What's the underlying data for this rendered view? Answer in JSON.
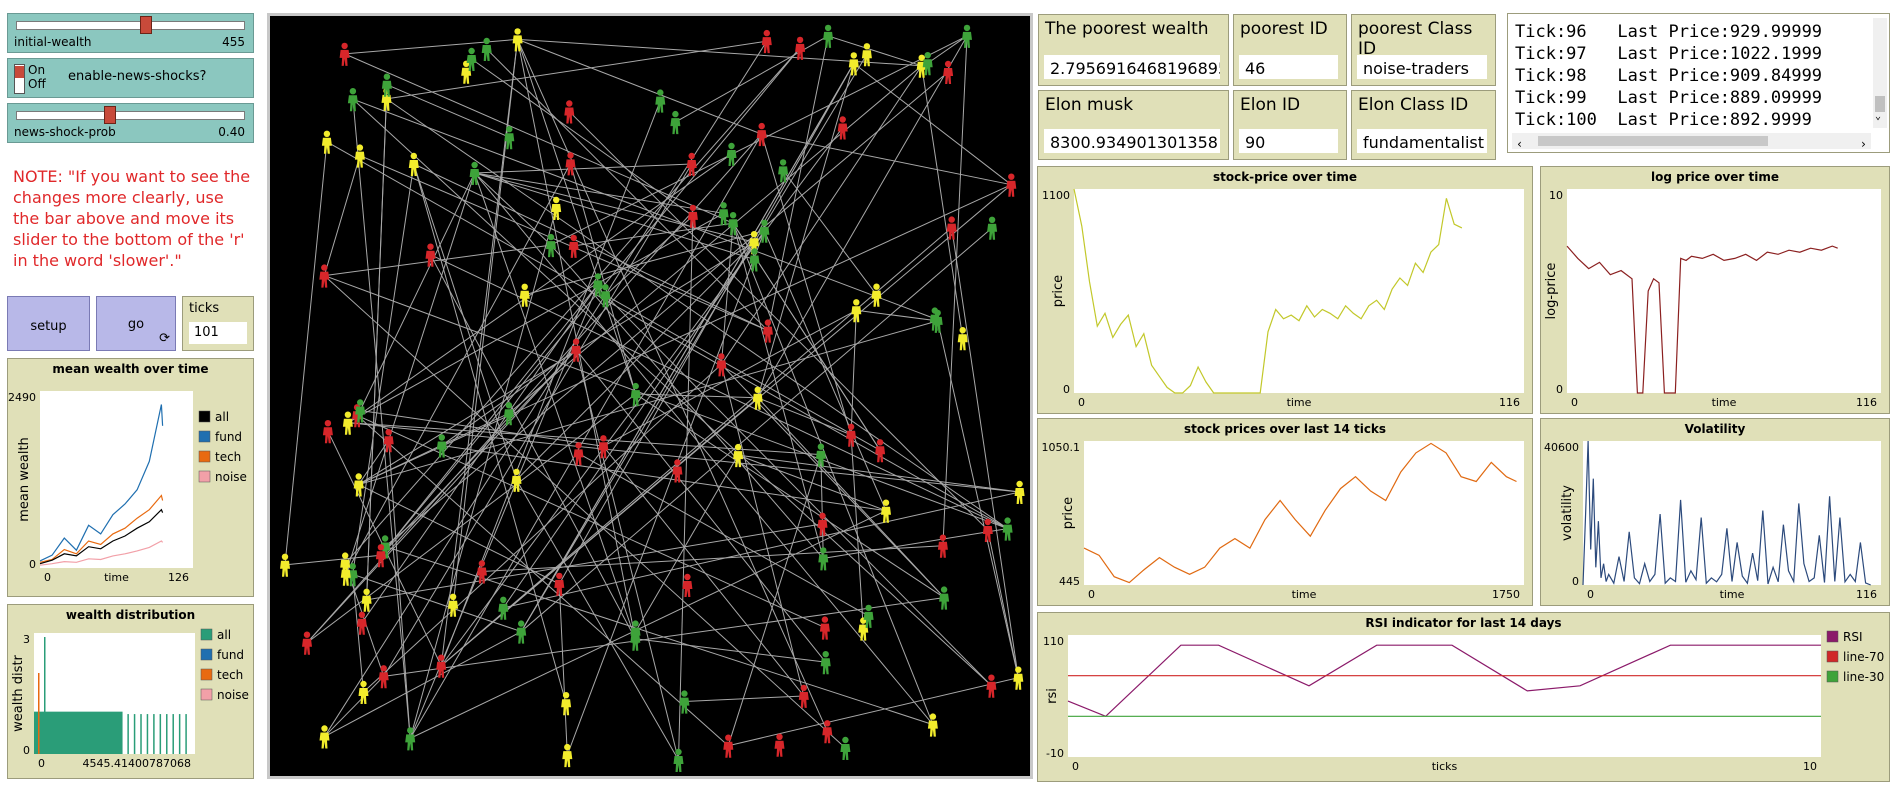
{
  "sliders": {
    "initial_wealth": {
      "label": "initial-wealth",
      "value": "455",
      "fraction": 0.56
    },
    "news_shock_prob": {
      "label": "news-shock-prob",
      "value": "0.40",
      "fraction": 0.4
    }
  },
  "switch": {
    "on": "On",
    "off": "Off",
    "label": "enable-news-shocks?"
  },
  "note": "NOTE: \"If you want to see the changes more clearly, use the bar above and move its slider to the bottom of the 'r' in the word 'slower'.\"",
  "buttons": {
    "setup": "setup",
    "go": "go",
    "forever_icon": "forever-arrows-icon"
  },
  "ticks_monitor": {
    "label": "ticks",
    "value": "101"
  },
  "monitors": {
    "poorest_wealth": {
      "label": "The poorest wealth",
      "value": "2.7956916468196895"
    },
    "poorest_id": {
      "label": "poorest ID",
      "value": "46"
    },
    "poorest_class": {
      "label": "poorest Class ID",
      "value": "noise-traders"
    },
    "elon": {
      "label": "Elon musk",
      "value": "8300.934901301358"
    },
    "elon_id": {
      "label": "Elon ID",
      "value": "90"
    },
    "elon_class": {
      "label": "Elon Class ID",
      "value": "fundamentalist"
    }
  },
  "output_lines": [
    "Tick:96   Last Price:929.99999",
    "Tick:97   Last Price:1022.1999",
    "Tick:98   Last Price:909.84999",
    "Tick:99   Last Price:889.09999",
    "Tick:100  Last Price:892.9999"
  ],
  "colors": {
    "red": "#d7262a",
    "yellow": "#f2ec2c",
    "green": "#3ea33a",
    "link": "#a8a8a8",
    "world": "#000000"
  },
  "chart_data": [
    {
      "type": "line",
      "title": "mean wealth over time",
      "xlabel": "time",
      "ylabel": "mean wealth",
      "xmin_label": "0",
      "xmax_label": "126",
      "ymin_label": "0",
      "ymax_label": "2490",
      "xlim": [
        0,
        126
      ],
      "ylim": [
        0,
        2490
      ],
      "legend": [
        "all",
        "fund",
        "tech",
        "noise"
      ],
      "series": [
        {
          "name": "fund",
          "color": "#1f6fb0",
          "x": [
            0,
            10,
            20,
            30,
            40,
            50,
            60,
            70,
            80,
            90,
            100,
            101
          ],
          "y": [
            100,
            180,
            420,
            250,
            600,
            480,
            750,
            900,
            1100,
            1500,
            2300,
            2000
          ]
        },
        {
          "name": "tech",
          "color": "#e86a10",
          "x": [
            0,
            10,
            20,
            30,
            40,
            50,
            60,
            70,
            80,
            90,
            100,
            101
          ],
          "y": [
            80,
            120,
            260,
            200,
            380,
            330,
            480,
            560,
            700,
            820,
            1020,
            950
          ]
        },
        {
          "name": "all",
          "color": "#000000",
          "x": [
            0,
            10,
            20,
            30,
            40,
            50,
            60,
            70,
            80,
            90,
            100,
            101
          ],
          "y": [
            60,
            110,
            200,
            170,
            300,
            270,
            380,
            450,
            560,
            650,
            820,
            780
          ]
        },
        {
          "name": "noise",
          "color": "#f2a0a8",
          "x": [
            0,
            10,
            20,
            30,
            40,
            50,
            60,
            70,
            80,
            90,
            100,
            101
          ],
          "y": [
            40,
            60,
            90,
            80,
            130,
            120,
            170,
            200,
            240,
            290,
            380,
            360
          ]
        }
      ]
    },
    {
      "type": "bar",
      "title": "wealth distribution",
      "xlabel": "",
      "ylabel": "wealth distr",
      "xmin_label": "0",
      "xmax_label": "4545.41400787068",
      "ymin_label": "0",
      "ymax_label": "3",
      "ylim": [
        0,
        3
      ],
      "legend": [
        "all",
        "fund",
        "tech",
        "noise"
      ],
      "legend_colors": [
        "#2a9d78",
        "#1f6fb0",
        "#e86a10",
        "#f2a0a8"
      ]
    },
    {
      "type": "line",
      "title": "stock-price over time",
      "xlabel": "time",
      "ylabel": "price",
      "xmin_label": "0",
      "xmax_label": "116",
      "ymin_label": "0",
      "ymax_label": "1100",
      "xlim": [
        0,
        116
      ],
      "ylim": [
        0,
        1100
      ],
      "series": [
        {
          "name": "price",
          "color": "#c2c82a",
          "x": [
            0,
            2,
            4,
            6,
            8,
            10,
            12,
            14,
            16,
            18,
            20,
            22,
            24,
            26,
            28,
            30,
            32,
            34,
            36,
            38,
            40,
            42,
            44,
            46,
            48,
            50,
            52,
            54,
            56,
            58,
            60,
            62,
            64,
            66,
            68,
            70,
            72,
            74,
            76,
            78,
            80,
            82,
            84,
            86,
            88,
            90,
            92,
            94,
            96,
            98,
            100
          ],
          "y": [
            1100,
            900,
            600,
            360,
            430,
            300,
            370,
            420,
            250,
            320,
            150,
            90,
            30,
            0,
            0,
            40,
            140,
            60,
            0,
            0,
            0,
            0,
            0,
            0,
            0,
            330,
            450,
            400,
            420,
            390,
            470,
            410,
            450,
            430,
            400,
            470,
            430,
            400,
            470,
            500,
            450,
            560,
            620,
            580,
            700,
            650,
            760,
            800,
            1050,
            910,
            890
          ]
        }
      ]
    },
    {
      "type": "line",
      "title": "log price over time",
      "xlabel": "time",
      "ylabel": "log-price",
      "xmin_label": "0",
      "xmax_label": "116",
      "ymin_label": "0",
      "ymax_label": "10",
      "xlim": [
        0,
        116
      ],
      "ylim": [
        0,
        10
      ],
      "series": [
        {
          "name": "log-price",
          "color": "#8b2020",
          "x": [
            0,
            4,
            8,
            12,
            16,
            20,
            24,
            26,
            28,
            30,
            32,
            34,
            36,
            38,
            40,
            42,
            44,
            46,
            50,
            54,
            58,
            62,
            66,
            70,
            74,
            78,
            82,
            86,
            90,
            94,
            98,
            100
          ],
          "y": [
            7.2,
            6.6,
            6.1,
            6.4,
            5.8,
            6.0,
            5.6,
            0,
            0,
            5.0,
            5.6,
            5.4,
            0,
            0,
            0,
            6.6,
            6.5,
            6.7,
            6.6,
            6.8,
            6.5,
            6.6,
            6.8,
            6.5,
            6.9,
            6.8,
            7.0,
            6.9,
            7.1,
            7.0,
            7.2,
            7.1
          ]
        }
      ]
    },
    {
      "type": "line",
      "title": "stock prices over last 14 ticks",
      "xlabel": "time",
      "ylabel": "price",
      "xmin_label": "0",
      "xmax_label": "1750",
      "ymin_label": "445",
      "ymax_label": "1050.1",
      "xlim": [
        0,
        1750
      ],
      "ylim": [
        445,
        1050.1
      ],
      "series": [
        {
          "name": "price",
          "color": "#e06a12",
          "x": [
            0,
            60,
            120,
            180,
            240,
            300,
            360,
            420,
            480,
            540,
            600,
            660,
            720,
            780,
            840,
            900,
            960,
            1020,
            1080,
            1140,
            1200,
            1260,
            1320,
            1380,
            1440,
            1500,
            1560,
            1620,
            1680,
            1720
          ],
          "y": [
            600,
            570,
            480,
            455,
            510,
            560,
            520,
            490,
            520,
            600,
            640,
            600,
            720,
            800,
            720,
            650,
            760,
            850,
            900,
            840,
            800,
            920,
            1000,
            1040,
            1000,
            900,
            880,
            960,
            900,
            880
          ]
        }
      ]
    },
    {
      "type": "line",
      "title": "Volatility",
      "xlabel": "time",
      "ylabel": "volatility",
      "xmin_label": "0",
      "xmax_label": "116",
      "ymin_label": "0",
      "ymax_label": "40600",
      "xlim": [
        0,
        116
      ],
      "ylim": [
        0,
        40600
      ],
      "series": [
        {
          "name": "volatility",
          "color": "#2c4a7c",
          "x": [
            0,
            1,
            2,
            3,
            4,
            5,
            6,
            7,
            8,
            9,
            10,
            12,
            14,
            16,
            18,
            20,
            22,
            24,
            26,
            28,
            30,
            32,
            34,
            36,
            38,
            40,
            42,
            44,
            46,
            48,
            50,
            52,
            54,
            56,
            58,
            60,
            62,
            64,
            66,
            68,
            70,
            72,
            74,
            76,
            78,
            80,
            82,
            84,
            86,
            88,
            90,
            92,
            94,
            96,
            98,
            100,
            102,
            104,
            106,
            108,
            110,
            112
          ],
          "y": [
            0,
            20000,
            40600,
            10000,
            30000,
            5000,
            18000,
            2000,
            6000,
            1000,
            3000,
            500,
            8000,
            1000,
            15000,
            2000,
            400,
            6000,
            1000,
            3000,
            20000,
            500,
            2000,
            1000,
            24000,
            800,
            4000,
            1500,
            19000,
            500,
            2000,
            900,
            3000,
            16000,
            1000,
            12000,
            2500,
            500,
            9000,
            1200,
            21000,
            300,
            5000,
            900,
            17000,
            4000,
            1000,
            23000,
            6000,
            1000,
            2000,
            14000,
            700,
            25000,
            1000,
            19000,
            900,
            3000,
            1000,
            12000,
            600,
            0
          ]
        }
      ]
    },
    {
      "type": "line",
      "title": "RSI indicator for last 14 days",
      "xlabel": "ticks",
      "ylabel": "rsi",
      "xmin_label": "0",
      "xmax_label": "10",
      "ymin_label": "-10",
      "ymax_label": "110",
      "xlim": [
        0,
        10
      ],
      "ylim": [
        -10,
        110
      ],
      "legend": [
        "RSI",
        "line-70",
        "line-30"
      ],
      "series": [
        {
          "name": "RSI",
          "color": "#8b1a6a",
          "x": [
            0,
            0.5,
            1.5,
            2.0,
            3.2,
            4.1,
            5.1,
            6.1,
            6.8,
            8.0,
            8.8,
            10
          ],
          "y": [
            45,
            30,
            100,
            100,
            60,
            100,
            100,
            55,
            60,
            100,
            100,
            100
          ]
        },
        {
          "name": "line-70",
          "color": "#d02828",
          "x": [
            0,
            10
          ],
          "y": [
            70,
            70
          ]
        },
        {
          "name": "line-30",
          "color": "#3ea33a",
          "x": [
            0,
            10
          ],
          "y": [
            30,
            30
          ]
        }
      ]
    }
  ]
}
